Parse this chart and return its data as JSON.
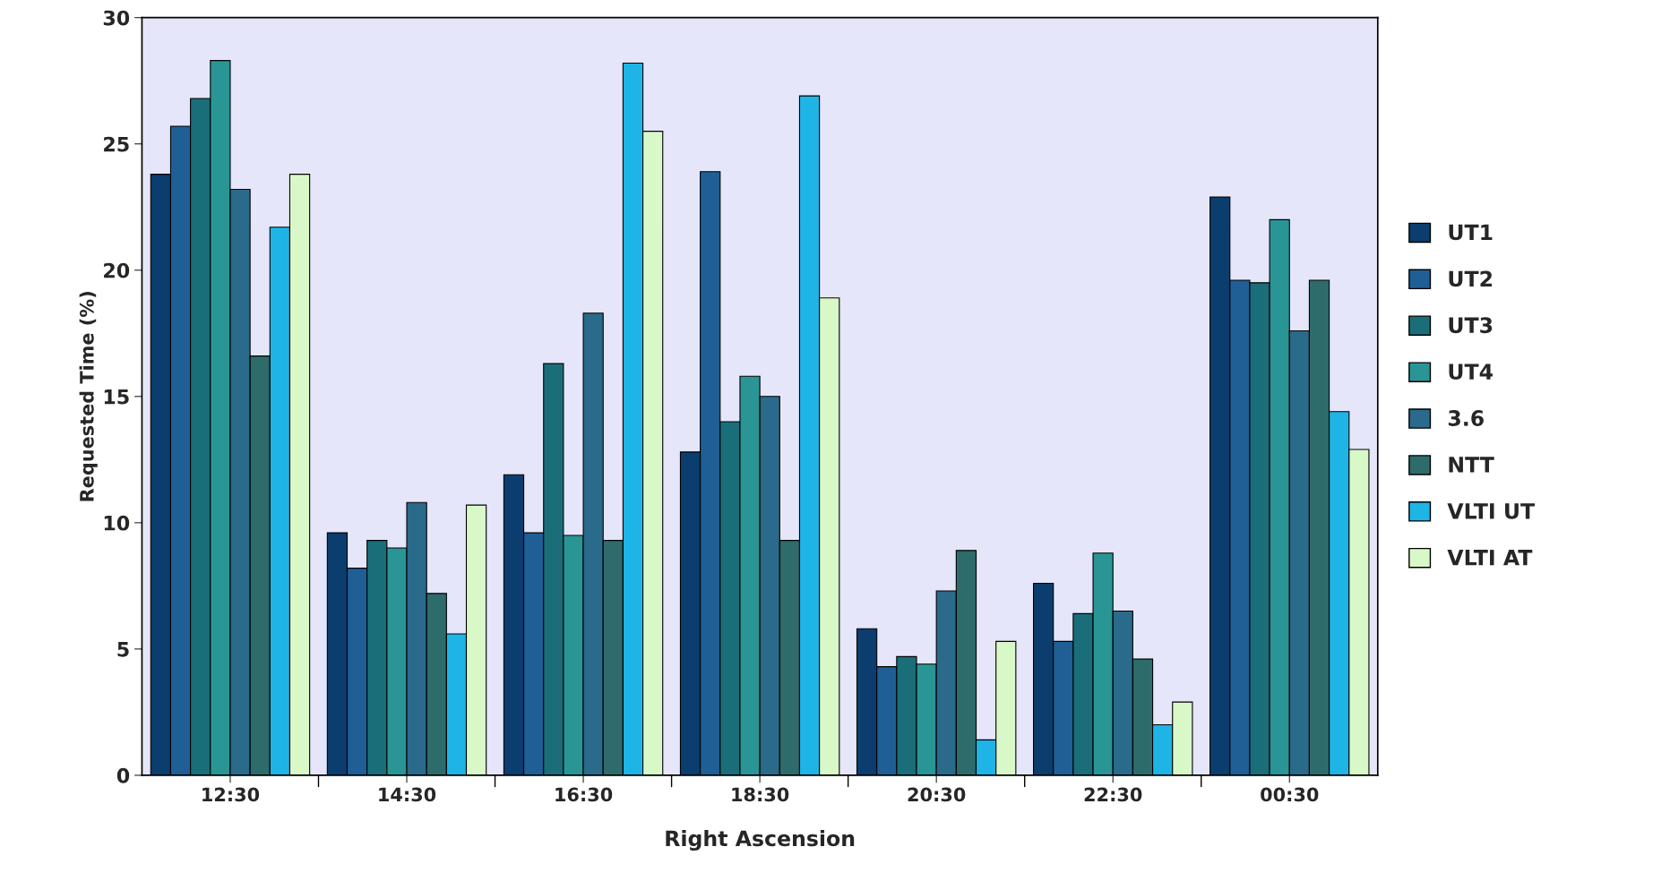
{
  "chart_data": {
    "type": "bar",
    "xlabel": "Right Ascension",
    "ylabel": "Requested Time (%)",
    "categories": [
      "12:30",
      "14:30",
      "16:30",
      "18:30",
      "20:30",
      "22:30",
      "00:30"
    ],
    "ylim": [
      0,
      30
    ],
    "yticks": [
      0,
      5,
      10,
      15,
      20,
      25,
      30
    ],
    "grid": false,
    "legend": "right",
    "series": [
      {
        "name": "UT1",
        "color": "#0b3d6e",
        "values": [
          23.8,
          9.6,
          11.9,
          12.8,
          5.8,
          7.6,
          22.9
        ]
      },
      {
        "name": "UT2",
        "color": "#1f5f96",
        "values": [
          25.7,
          8.2,
          9.6,
          23.9,
          4.3,
          5.3,
          19.6
        ]
      },
      {
        "name": "UT3",
        "color": "#1a6e7a",
        "values": [
          26.8,
          9.3,
          16.3,
          14.0,
          4.7,
          6.4,
          19.5
        ]
      },
      {
        "name": "UT4",
        "color": "#2a9595",
        "values": [
          28.3,
          9.0,
          9.5,
          15.8,
          4.4,
          8.8,
          22.0
        ]
      },
      {
        "name": "3.6",
        "color": "#2a6a8a",
        "values": [
          23.2,
          10.8,
          18.3,
          15.0,
          7.3,
          6.5,
          17.6
        ]
      },
      {
        "name": "NTT",
        "color": "#2e6b6b",
        "values": [
          16.6,
          7.2,
          9.3,
          9.3,
          8.9,
          4.6,
          19.6
        ]
      },
      {
        "name": "VLTI UT",
        "color": "#1fb4e6",
        "values": [
          21.7,
          5.6,
          28.2,
          26.9,
          1.4,
          2.0,
          14.4
        ]
      },
      {
        "name": "VLTI AT",
        "color": "#d8f8c8",
        "values": [
          23.8,
          10.7,
          25.5,
          18.9,
          5.3,
          2.9,
          12.9
        ]
      }
    ]
  }
}
